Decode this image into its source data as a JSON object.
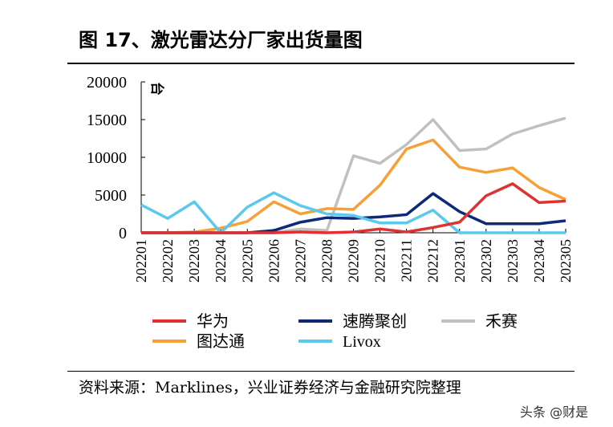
{
  "title": "图 17、激光雷达分厂家出货量图",
  "source": "资料来源：Marklines，兴业证券经济与金融研究院整理",
  "watermark": "头条 @财是",
  "chart_data": {
    "type": "line",
    "unit_label": "台",
    "ylim": [
      0,
      20000
    ],
    "yticks": [
      "0",
      "5000",
      "10000",
      "15000",
      "20000"
    ],
    "categories": [
      "202201",
      "202202",
      "202203",
      "202204",
      "202205",
      "202206",
      "202207",
      "202208",
      "202209",
      "202210",
      "202211",
      "202212",
      "202301",
      "202302",
      "202303",
      "202304",
      "202305"
    ],
    "legend_position": "bottom",
    "series": [
      {
        "name": "华为",
        "color": "#e03131",
        "values": [
          0,
          0,
          0,
          0,
          0,
          0,
          100,
          0,
          100,
          500,
          100,
          700,
          1400,
          4900,
          6500,
          4000,
          4200
        ]
      },
      {
        "name": "速腾聚创",
        "color": "#0d2a7a",
        "values": [
          0,
          0,
          0,
          0,
          0,
          300,
          1400,
          2000,
          1900,
          2100,
          2400,
          5200,
          2800,
          1200,
          1200,
          1200,
          1600
        ]
      },
      {
        "name": "禾赛",
        "color": "#c0c0c0",
        "values": [
          0,
          0,
          0,
          0,
          0,
          0,
          500,
          300,
          10200,
          9200,
          11700,
          15000,
          10900,
          11100,
          13100,
          14200,
          15200
        ]
      },
      {
        "name": "图达通",
        "color": "#f7a035",
        "values": [
          0,
          0,
          100,
          600,
          1500,
          4100,
          2500,
          3200,
          3100,
          6300,
          11100,
          12300,
          8700,
          8000,
          8600,
          6000,
          4400
        ]
      },
      {
        "name": "Livox",
        "color": "#5bc8ee",
        "values": [
          3700,
          1900,
          4100,
          0,
          3400,
          5300,
          3600,
          2500,
          2300,
          1300,
          1300,
          3000,
          0,
          0,
          0,
          0,
          0
        ]
      }
    ]
  }
}
